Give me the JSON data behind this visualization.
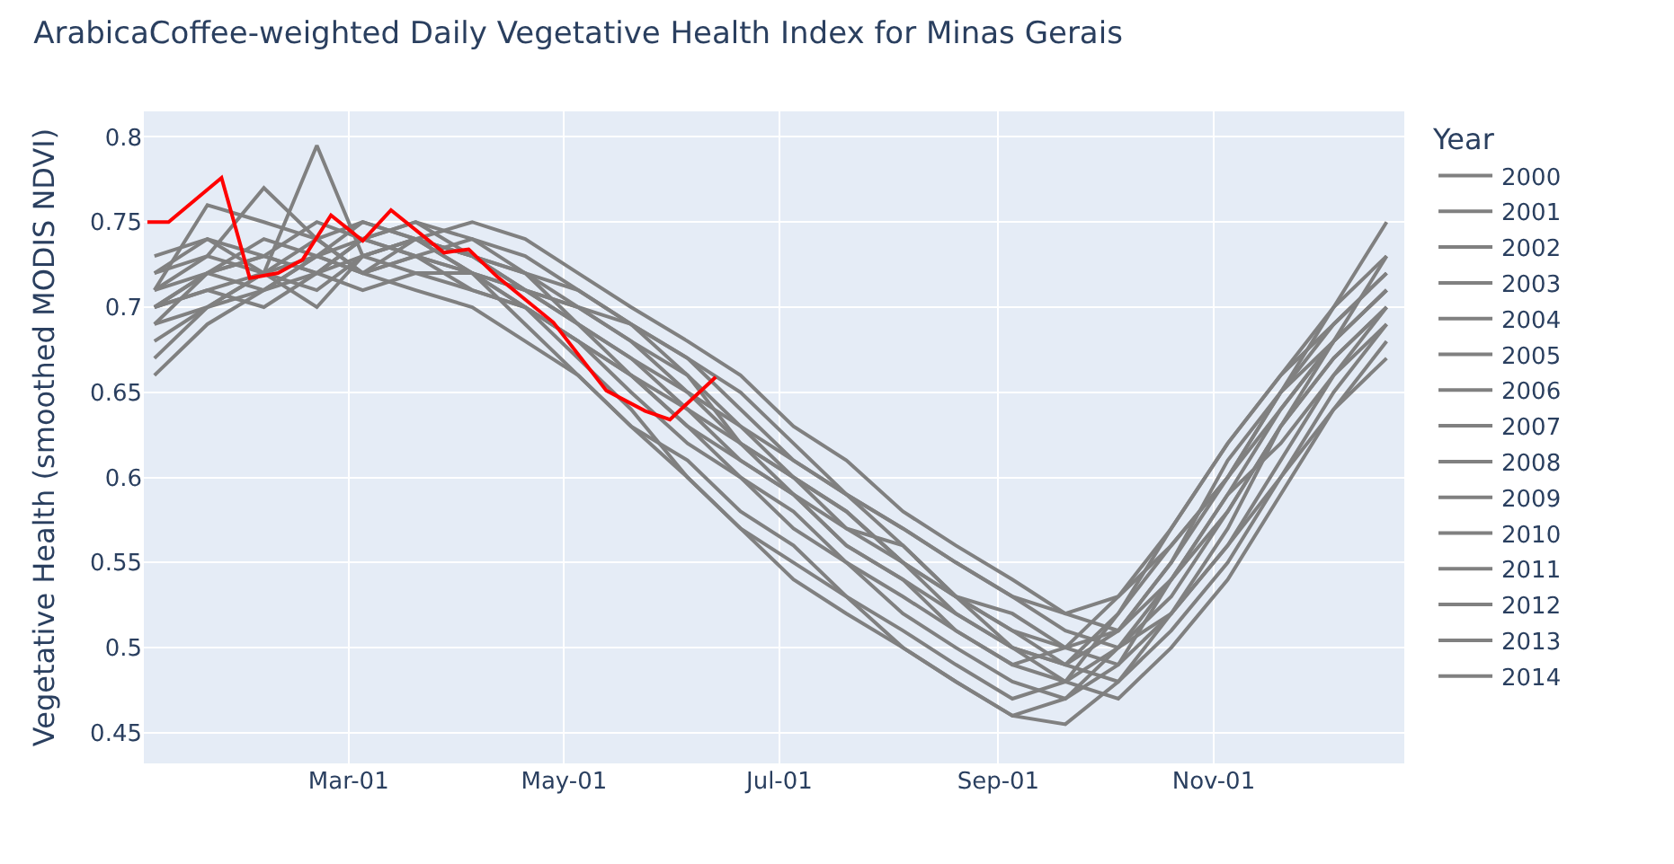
{
  "chart_data": {
    "type": "line",
    "title": "ArabicaCoffee-weighted Daily Vegetative Health Index for Minas Gerais",
    "ylabel": "Vegetative Health (smoothed MODIS NDVI)",
    "legend_title": "Year",
    "legend": "right",
    "grid": true,
    "line_style": "solid",
    "x": [
      "--01-05",
      "--01-20",
      "--02-05",
      "--02-20",
      "--03-05",
      "--03-20",
      "--04-05",
      "--04-20",
      "--05-05",
      "--05-20",
      "--06-05",
      "--06-20",
      "--07-05",
      "--07-20",
      "--08-05",
      "--08-20",
      "--09-05",
      "--09-20",
      "--10-05",
      "--10-20",
      "--11-05",
      "--11-20",
      "--12-05",
      "--12-20"
    ],
    "xlim": [
      "--01-02",
      "--12-25"
    ],
    "xticks": [
      {
        "value": "--03-01",
        "label": "Mar-01"
      },
      {
        "value": "--05-01",
        "label": "May-01"
      },
      {
        "value": "--07-01",
        "label": "Jul-01"
      },
      {
        "value": "--09-01",
        "label": "Sep-01"
      },
      {
        "value": "--11-01",
        "label": "Nov-01"
      }
    ],
    "ylim": [
      0.432,
      0.815
    ],
    "yticks": [
      0.45,
      0.5,
      0.55,
      0.6,
      0.65,
      0.7,
      0.75,
      0.8
    ],
    "series": [
      {
        "name": "2000",
        "color": "#808080",
        "values": [
          0.7,
          0.72,
          0.71,
          0.73,
          0.74,
          0.73,
          0.72,
          0.71,
          0.69,
          0.67,
          0.64,
          0.61,
          0.59,
          0.56,
          0.54,
          0.52,
          0.5,
          0.49,
          0.51,
          0.55,
          0.6,
          0.64,
          0.68,
          0.71
        ]
      },
      {
        "name": "2001",
        "color": "#808080",
        "values": [
          0.71,
          0.76,
          0.75,
          0.74,
          0.72,
          0.73,
          0.71,
          0.7,
          0.68,
          0.65,
          0.62,
          0.6,
          0.57,
          0.55,
          0.52,
          0.5,
          0.48,
          0.47,
          0.5,
          0.53,
          0.58,
          0.63,
          0.67,
          0.7
        ]
      },
      {
        "name": "2002",
        "color": "#808080",
        "values": [
          0.68,
          0.7,
          0.72,
          0.71,
          0.73,
          0.74,
          0.73,
          0.71,
          0.7,
          0.68,
          0.66,
          0.63,
          0.6,
          0.58,
          0.55,
          0.53,
          0.51,
          0.5,
          0.49,
          0.52,
          0.56,
          0.61,
          0.66,
          0.69
        ]
      },
      {
        "name": "2003",
        "color": "#808080",
        "values": [
          0.72,
          0.73,
          0.77,
          0.74,
          0.72,
          0.71,
          0.7,
          0.68,
          0.66,
          0.63,
          0.61,
          0.58,
          0.56,
          0.53,
          0.51,
          0.49,
          0.47,
          0.48,
          0.52,
          0.57,
          0.62,
          0.66,
          0.69,
          0.72
        ]
      },
      {
        "name": "2004",
        "color": "#808080",
        "values": [
          0.66,
          0.69,
          0.71,
          0.72,
          0.74,
          0.75,
          0.74,
          0.73,
          0.71,
          0.69,
          0.67,
          0.64,
          0.61,
          0.59,
          0.57,
          0.55,
          0.53,
          0.52,
          0.53,
          0.56,
          0.6,
          0.65,
          0.68,
          0.73
        ]
      },
      {
        "name": "2005",
        "color": "#808080",
        "values": [
          0.7,
          0.71,
          0.7,
          0.72,
          0.71,
          0.72,
          0.72,
          0.7,
          0.67,
          0.64,
          0.6,
          0.57,
          0.55,
          0.53,
          0.5,
          0.48,
          0.46,
          0.47,
          0.49,
          0.54,
          0.59,
          0.62,
          0.66,
          0.7
        ]
      },
      {
        "name": "2006",
        "color": "#808080",
        "values": [
          0.69,
          0.72,
          0.73,
          0.75,
          0.74,
          0.73,
          0.74,
          0.72,
          0.7,
          0.69,
          0.66,
          0.62,
          0.59,
          0.57,
          0.56,
          0.53,
          0.52,
          0.5,
          0.51,
          0.55,
          0.61,
          0.65,
          0.69,
          0.72
        ]
      },
      {
        "name": "2007",
        "color": "#808080",
        "values": [
          0.73,
          0.74,
          0.72,
          0.7,
          0.73,
          0.74,
          0.72,
          0.69,
          0.66,
          0.63,
          0.6,
          0.57,
          0.54,
          0.52,
          0.5,
          0.48,
          0.46,
          0.455,
          0.48,
          0.52,
          0.57,
          0.63,
          0.68,
          0.71
        ]
      },
      {
        "name": "2008",
        "color": "#808080",
        "values": [
          0.67,
          0.7,
          0.72,
          0.73,
          0.75,
          0.74,
          0.75,
          0.74,
          0.72,
          0.7,
          0.68,
          0.66,
          0.63,
          0.61,
          0.58,
          0.56,
          0.54,
          0.52,
          0.51,
          0.54,
          0.58,
          0.63,
          0.67,
          0.7
        ]
      },
      {
        "name": "2009",
        "color": "#808080",
        "values": [
          0.71,
          0.72,
          0.74,
          0.73,
          0.72,
          0.74,
          0.73,
          0.71,
          0.69,
          0.66,
          0.63,
          0.6,
          0.58,
          0.55,
          0.53,
          0.51,
          0.49,
          0.48,
          0.5,
          0.54,
          0.59,
          0.64,
          0.68,
          0.71
        ]
      },
      {
        "name": "2010",
        "color": "#808080",
        "values": [
          0.7,
          0.71,
          0.72,
          0.795,
          0.73,
          0.72,
          0.71,
          0.7,
          0.68,
          0.66,
          0.63,
          0.61,
          0.59,
          0.56,
          0.54,
          0.51,
          0.49,
          0.5,
          0.53,
          0.57,
          0.62,
          0.66,
          0.7,
          0.73
        ]
      },
      {
        "name": "2011",
        "color": "#808080",
        "values": [
          0.72,
          0.74,
          0.73,
          0.72,
          0.74,
          0.75,
          0.73,
          0.72,
          0.69,
          0.67,
          0.65,
          0.62,
          0.6,
          0.57,
          0.55,
          0.53,
          0.5,
          0.49,
          0.52,
          0.56,
          0.6,
          0.65,
          0.7,
          0.75
        ]
      },
      {
        "name": "2012",
        "color": "#808080",
        "values": [
          0.69,
          0.7,
          0.71,
          0.73,
          0.72,
          0.73,
          0.72,
          0.71,
          0.7,
          0.68,
          0.65,
          0.63,
          0.61,
          0.59,
          0.57,
          0.55,
          0.53,
          0.51,
          0.5,
          0.52,
          0.56,
          0.6,
          0.64,
          0.68
        ]
      },
      {
        "name": "2013",
        "color": "#808080",
        "values": [
          0.71,
          0.73,
          0.72,
          0.74,
          0.75,
          0.74,
          0.73,
          0.72,
          0.71,
          0.69,
          0.67,
          0.65,
          0.62,
          0.59,
          0.56,
          0.53,
          0.51,
          0.49,
          0.48,
          0.51,
          0.55,
          0.6,
          0.65,
          0.69
        ]
      },
      {
        "name": "2014",
        "color": "#808080",
        "values": [
          0.7,
          0.72,
          0.73,
          0.72,
          0.73,
          0.74,
          0.72,
          0.7,
          0.68,
          0.66,
          0.64,
          0.62,
          0.6,
          0.58,
          0.55,
          0.52,
          0.5,
          0.48,
          0.47,
          0.5,
          0.54,
          0.59,
          0.64,
          0.67
        ]
      },
      {
        "color": "#ff0000",
        "x": [
          "--01-03",
          "--01-09",
          "--01-24",
          "--02-01",
          "--02-09",
          "--02-16",
          "--02-24",
          "--03-05",
          "--03-13",
          "--03-28",
          "--04-04",
          "--04-12",
          "--04-28",
          "--05-13",
          "--05-24",
          "--05-31",
          "--06-13"
        ],
        "values": [
          0.75,
          0.75,
          0.776,
          0.717,
          0.72,
          0.728,
          0.754,
          0.739,
          0.757,
          0.732,
          0.734,
          0.718,
          0.691,
          0.651,
          0.639,
          0.634,
          0.659
        ]
      }
    ]
  }
}
